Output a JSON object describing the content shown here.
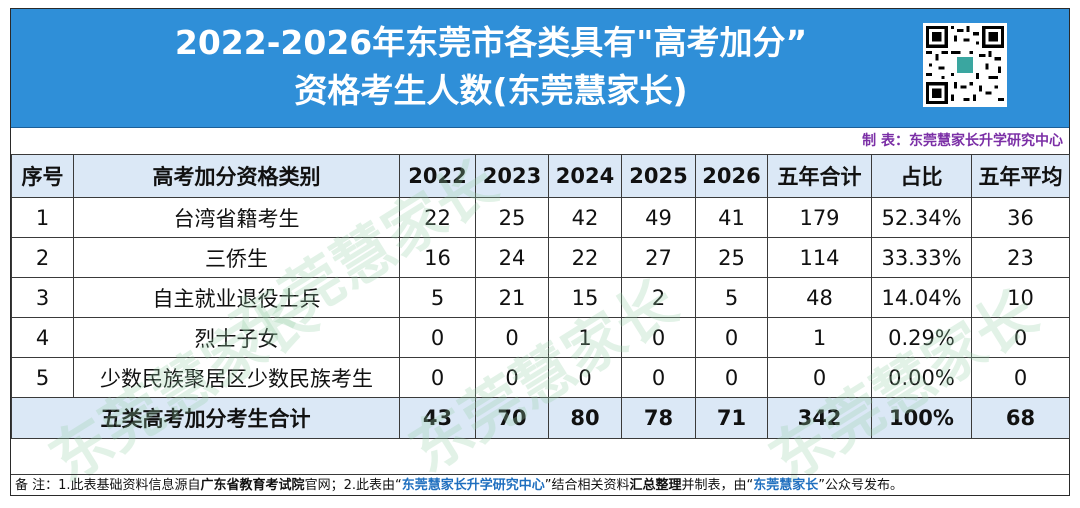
{
  "title": {
    "line1": "2022-2026年东莞市各类具有\"高考加分”",
    "line2": "资格考生人数(东莞慧家长)"
  },
  "maker_label": "制 表：东莞慧家长升学研究中心",
  "watermark_text": "东莞慧家长",
  "table": {
    "headers": [
      "序号",
      "高考加分资格类别",
      "2022",
      "2023",
      "2024",
      "2025",
      "2026",
      "五年合计",
      "占比",
      "五年平均"
    ],
    "rows": [
      [
        "1",
        "台湾省籍考生",
        "22",
        "25",
        "42",
        "49",
        "41",
        "179",
        "52.34%",
        "36"
      ],
      [
        "2",
        "三侨生",
        "16",
        "24",
        "22",
        "27",
        "25",
        "114",
        "33.33%",
        "23"
      ],
      [
        "3",
        "自主就业退役士兵",
        "5",
        "21",
        "15",
        "2",
        "5",
        "48",
        "14.04%",
        "10"
      ],
      [
        "4",
        "烈士子女",
        "0",
        "0",
        "1",
        "0",
        "0",
        "1",
        "0.29%",
        "0"
      ],
      [
        "5",
        "少数民族聚居区少数民族考生",
        "0",
        "0",
        "0",
        "0",
        "0",
        "0",
        "0.00%",
        "0"
      ]
    ],
    "total": [
      "五类高考加分考生合计",
      "43",
      "70",
      "80",
      "78",
      "71",
      "342",
      "100%",
      "68"
    ]
  },
  "footnote": {
    "p1": "备 注：1.此表基础资料信息源自",
    "p2": "广东省教育考试院",
    "p3": "官网；2.此表由“",
    "p4": "东莞慧家长升学研究中心",
    "p5": "”结合相关资料",
    "p6": "汇总整理",
    "p7": "并制表，由“",
    "p8": "东莞慧家长",
    "p9": "”公众号发布。"
  },
  "colors": {
    "banner": "#2f8fd8",
    "header_fill": "#dbe8f6",
    "maker_text": "#7b2fa6",
    "footnote_highlight": "#1f6fbf"
  }
}
